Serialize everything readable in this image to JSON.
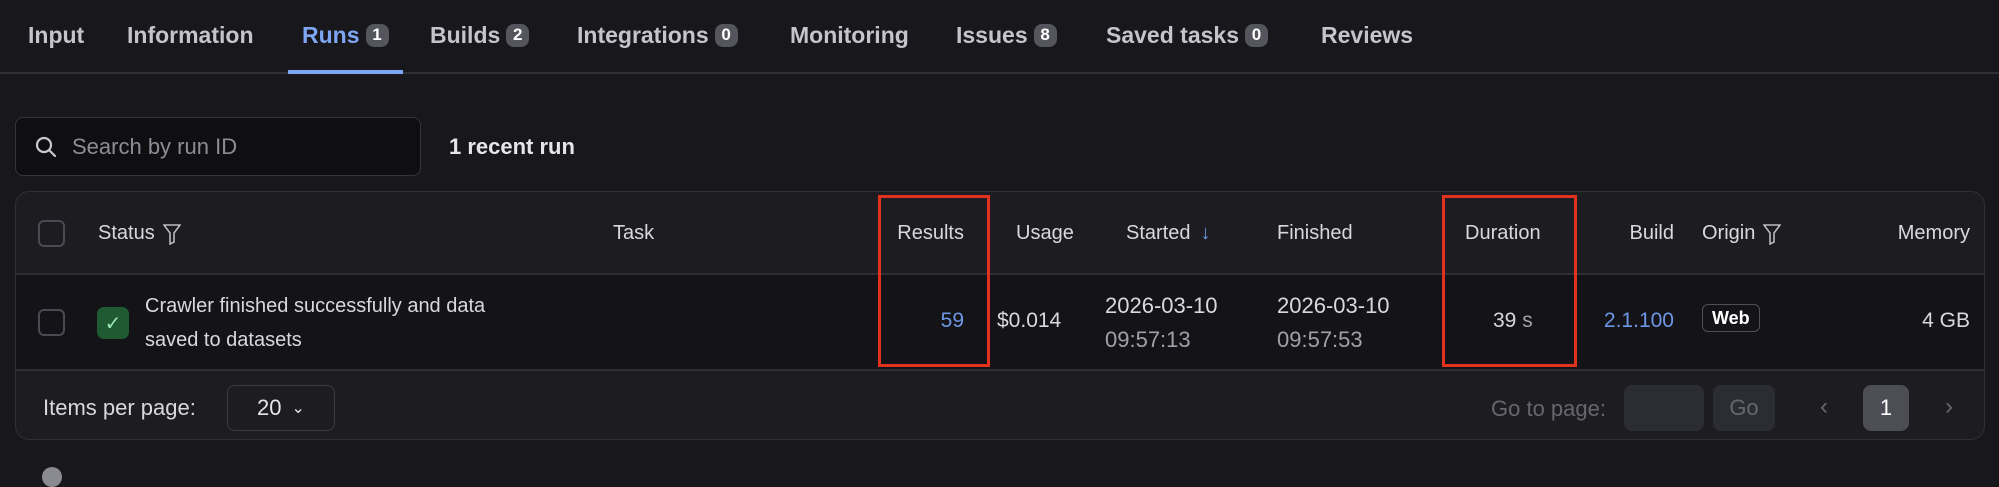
{
  "tabs": [
    {
      "label": "Input"
    },
    {
      "label": "Information"
    },
    {
      "label": "Runs",
      "count": "1"
    },
    {
      "label": "Builds",
      "count": "2"
    },
    {
      "label": "Integrations",
      "count": "0"
    },
    {
      "label": "Monitoring"
    },
    {
      "label": "Issues",
      "count": "8"
    },
    {
      "label": "Saved tasks",
      "count": "0"
    },
    {
      "label": "Reviews"
    }
  ],
  "active_tab": "Runs",
  "search": {
    "placeholder": "Search by run ID",
    "icon": "search-icon"
  },
  "recent_count": "1 recent run",
  "table": {
    "headers": {
      "status": "Status",
      "task": "Task",
      "results": "Results",
      "usage": "Usage",
      "started": "Started",
      "finished": "Finished",
      "duration": "Duration",
      "build": "Build",
      "origin": "Origin",
      "memory": "Memory"
    },
    "sort": {
      "column": "Started",
      "direction": "descending"
    },
    "rows": [
      {
        "status": "succeeded",
        "status_text_1": "Crawler finished successfully and data",
        "status_text_2": "saved to datasets",
        "task": "",
        "results": "59",
        "usage": "$0.014",
        "started_date": "2026-03-10",
        "started_time": "09:57:13",
        "finished_date": "2026-03-10",
        "finished_time": "09:57:53",
        "duration": "39",
        "duration_unit": "s",
        "build": "2.1.100",
        "origin": "Web",
        "memory": "4 GB"
      }
    ],
    "highlighted_columns": [
      "Results",
      "Duration"
    ],
    "highlight_color": "#e0321c"
  },
  "footer": {
    "items_per_page_label": "Items per page:",
    "items_per_page": "20",
    "go_to_page_label": "Go to page:",
    "go_label": "Go",
    "current_page": "1"
  },
  "colors": {
    "accent": "#7ea6f2",
    "success": "#1f5a32",
    "background": "#18181c"
  }
}
